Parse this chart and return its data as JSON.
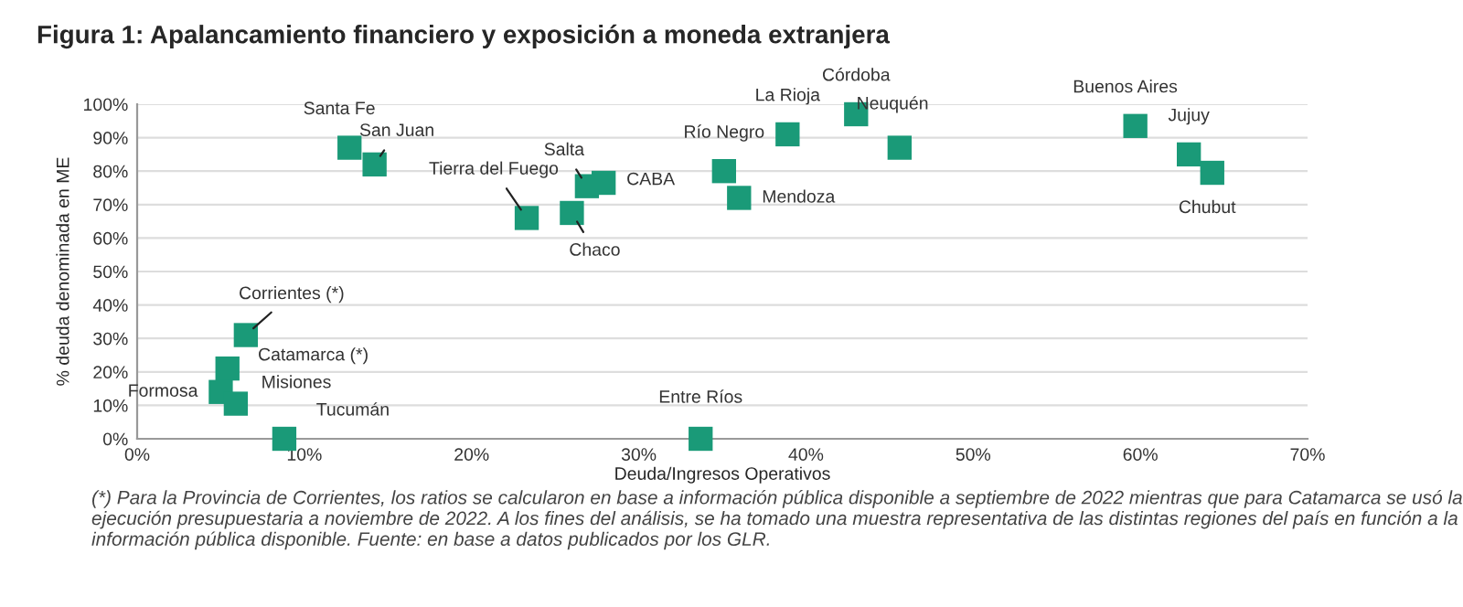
{
  "chart_data": {
    "type": "scatter",
    "title": "Figura 1: Apalancamiento financiero y exposición a moneda extranjera",
    "xlabel": "Deuda/Ingresos Operativos",
    "ylabel": "% deuda denominada en ME",
    "x": [
      12.7,
      14.2,
      23.3,
      26.0,
      26.9,
      27.9,
      6.5,
      5.4,
      5.0,
      5.9,
      8.8,
      33.7,
      35.1,
      36.0,
      38.9,
      43.0,
      45.6,
      59.7,
      62.9,
      64.3
    ],
    "series": [
      {
        "color": "#1a9a78",
        "values": [
          87,
          82,
          66,
          67.5,
          75.5,
          76.5,
          31,
          21,
          14,
          10.5,
          0,
          0,
          80,
          72,
          91,
          97,
          87,
          93.5,
          85,
          79.5
        ]
      }
    ],
    "xlim": [
      0,
      70
    ],
    "ylim": [
      0,
      100
    ],
    "xticks": [
      {
        "value": 0,
        "label": "0%"
      },
      {
        "value": 10,
        "label": "10%"
      },
      {
        "value": 20,
        "label": "20%"
      },
      {
        "value": 30,
        "label": "30%"
      },
      {
        "value": 40,
        "label": "40%"
      },
      {
        "value": 50,
        "label": "50%"
      },
      {
        "value": 60,
        "label": "60%"
      },
      {
        "value": 70,
        "label": "70%"
      }
    ],
    "yticks": [
      {
        "value": 0,
        "label": "0%"
      },
      {
        "value": 10,
        "label": "10%"
      },
      {
        "value": 20,
        "label": "20%"
      },
      {
        "value": 30,
        "label": "30%"
      },
      {
        "value": 40,
        "label": "40%"
      },
      {
        "value": 50,
        "label": "50%"
      },
      {
        "value": 60,
        "label": "60%"
      },
      {
        "value": 70,
        "label": "70%"
      },
      {
        "value": 80,
        "label": "80%"
      },
      {
        "value": 90,
        "label": "90%"
      },
      {
        "value": 100,
        "label": "100%"
      }
    ],
    "grid": "y",
    "marker": "square",
    "annotations": [
      {
        "text": "Santa Fe",
        "x": 12.7,
        "y": 87
      },
      {
        "text": "San Juan",
        "x": 14.2,
        "y": 82
      },
      {
        "text": "Tierra del Fuego",
        "x": 23.3,
        "y": 66
      },
      {
        "text": "Chaco",
        "x": 26.0,
        "y": 67.5
      },
      {
        "text": "Salta",
        "x": 26.9,
        "y": 75.5
      },
      {
        "text": "CABA",
        "x": 27.9,
        "y": 76.5
      },
      {
        "text": "Corrientes (*)",
        "x": 6.5,
        "y": 31
      },
      {
        "text": "Catamarca (*)",
        "x": 5.4,
        "y": 21
      },
      {
        "text": "Formosa",
        "x": 5.0,
        "y": 14
      },
      {
        "text": "Misiones",
        "x": 5.9,
        "y": 10.5
      },
      {
        "text": "Tucumán",
        "x": 8.8,
        "y": 0
      },
      {
        "text": "Entre Ríos",
        "x": 33.7,
        "y": 0
      },
      {
        "text": "Río Negro",
        "x": 35.1,
        "y": 80
      },
      {
        "text": "Mendoza",
        "x": 36.0,
        "y": 72
      },
      {
        "text": "La Rioja",
        "x": 38.9,
        "y": 91
      },
      {
        "text": "Córdoba",
        "x": 43.0,
        "y": 97
      },
      {
        "text": "Neuquén",
        "x": 45.6,
        "y": 87
      },
      {
        "text": "Buenos Aires",
        "x": 59.7,
        "y": 93.5
      },
      {
        "text": "Jujuy",
        "x": 62.9,
        "y": 85
      },
      {
        "text": "Chubut",
        "x": 64.3,
        "y": 79.5
      },
      "(*) Para la Provincia de Corrientes, los ratios se calcularon en base a información pública disponible a septiembre de 2022 mientras que para Catamarca se usó la ejecución presupuestaria a noviembre de 2022. A los fines del análisis, se ha tomado una muestra representativa de las distintas regiones del país en función a la información pública disponible. Fuente: en base a datos publicados por los GLR."
    ]
  }
}
